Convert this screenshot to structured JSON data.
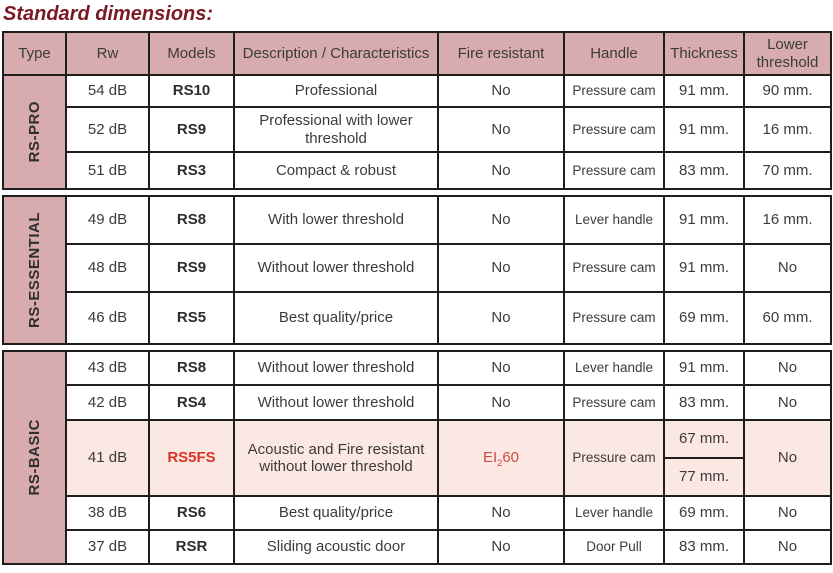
{
  "title": "Standard dimensions:",
  "colors": {
    "header_bg": "#d8acae",
    "highlight_bg": "#fbe8e3",
    "red": "#dc3428",
    "red_soft": "#cf4a42",
    "title_color": "#7b1a23",
    "border": "#1e1e1e",
    "text": "#3b3b3b"
  },
  "columns": [
    "Type",
    "Rw",
    "Models",
    "Description / Characteristics",
    "Fire resistant",
    "Handle",
    "Thickness",
    "Lower threshold"
  ],
  "groups": [
    {
      "type": "RS-PRO",
      "rows": [
        {
          "rw": "54 dB",
          "model": "RS10",
          "description": "Professional",
          "fire": "No",
          "handle": "Pressure cam",
          "thickness": [
            "91 mm."
          ],
          "lower": "90 mm."
        },
        {
          "rw": "52 dB",
          "model": "RS9",
          "description": "Professional with lower threshold",
          "fire": "No",
          "handle": "Pressure cam",
          "thickness": [
            "91 mm."
          ],
          "lower": "16 mm."
        },
        {
          "rw": "51 dB",
          "model": "RS3",
          "description": "Compact & robust",
          "fire": "No",
          "handle": "Pressure cam",
          "thickness": [
            "83 mm."
          ],
          "lower": "70 mm."
        }
      ]
    },
    {
      "type": "RS-ESSENTIAL",
      "rows": [
        {
          "rw": "49 dB",
          "model": "RS8",
          "description": "With lower threshold",
          "fire": "No",
          "handle": "Lever handle",
          "thickness": [
            "91 mm."
          ],
          "lower": "16 mm."
        },
        {
          "rw": "48 dB",
          "model": "RS9",
          "description": "Without lower threshold",
          "fire": "No",
          "handle": "Pressure cam",
          "thickness": [
            "91 mm."
          ],
          "lower": "No"
        },
        {
          "rw": "46 dB",
          "model": "RS5",
          "description": "Best quality/price",
          "fire": "No",
          "handle": "Pressure cam",
          "thickness": [
            "69 mm."
          ],
          "lower": "60 mm."
        }
      ]
    },
    {
      "type": "RS-BASIC",
      "rows": [
        {
          "rw": "43 dB",
          "model": "RS8",
          "description": "Without lower threshold",
          "fire": "No",
          "handle": "Lever handle",
          "thickness": [
            "91 mm."
          ],
          "lower": "No"
        },
        {
          "rw": "42 dB",
          "model": "RS4",
          "description": "Without lower threshold",
          "fire": "No",
          "handle": "Pressure cam",
          "thickness": [
            "83 mm."
          ],
          "lower": "No"
        },
        {
          "rw": "41 dB",
          "model": "RS5FS",
          "description": "Acoustic and Fire resistant without lower threshold",
          "fire": "EI₂60",
          "handle": "Pressure cam",
          "thickness": [
            "67 mm.",
            "77 mm."
          ],
          "lower": "No",
          "highlight": true
        },
        {
          "rw": "38 dB",
          "model": "RS6",
          "description": "Best quality/price",
          "fire": "No",
          "handle": "Lever handle",
          "thickness": [
            "69 mm."
          ],
          "lower": "No"
        },
        {
          "rw": "37 dB",
          "model": "RSR",
          "description": "Sliding acoustic door",
          "fire": "No",
          "handle": "Door Pull",
          "thickness": [
            "83 mm."
          ],
          "lower": "No"
        }
      ]
    }
  ]
}
